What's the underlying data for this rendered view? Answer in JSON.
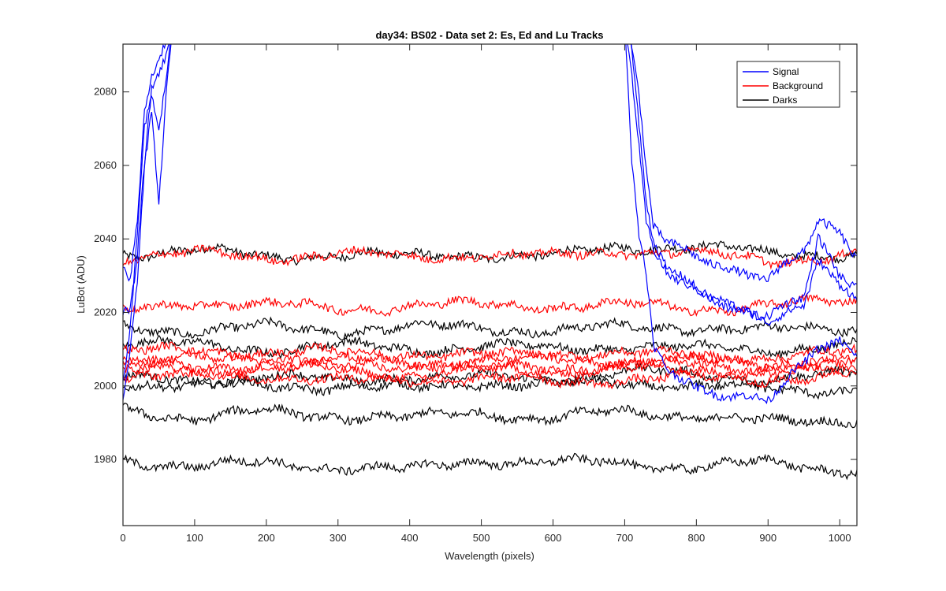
{
  "chart_data": {
    "type": "line",
    "title": "day34: BS02 - Data set 2: Es, Ed and Lu Tracks",
    "xlabel": "Wavelength (pixels)",
    "ylabel": "LuBot (ADU)",
    "xlim": [
      0,
      1024
    ],
    "ylim": [
      1962,
      2093
    ],
    "xticks": [
      0,
      100,
      200,
      300,
      400,
      500,
      600,
      700,
      800,
      900,
      1000
    ],
    "yticks": [
      1980,
      2000,
      2020,
      2040,
      2060,
      2080
    ],
    "grid": false,
    "legend_position": "top-right",
    "legend": [
      {
        "label": "Signal",
        "color": "#0000ff"
      },
      {
        "label": "Background",
        "color": "#ff0000"
      },
      {
        "label": "Darks",
        "color": "#000000"
      }
    ],
    "series": [
      {
        "group": "Darks",
        "color": "#000000",
        "x": [
          0,
          100,
          200,
          300,
          400,
          500,
          600,
          700,
          800,
          900,
          1024
        ],
        "y": [
          2036,
          2037,
          2035,
          2036,
          2035,
          2036,
          2035,
          2038,
          2038,
          2036,
          2036
        ]
      },
      {
        "group": "Darks",
        "color": "#000000",
        "x": [
          0,
          100,
          200,
          300,
          400,
          500,
          600,
          700,
          800,
          900,
          1024
        ],
        "y": [
          2016,
          2015,
          2016,
          2015,
          2016,
          2016,
          2015,
          2016,
          2016,
          2015,
          2016
        ]
      },
      {
        "group": "Darks",
        "color": "#000000",
        "x": [
          0,
          100,
          200,
          300,
          400,
          500,
          600,
          700,
          800,
          900,
          1024
        ],
        "y": [
          2012,
          2011,
          2010,
          2011,
          2010,
          2011,
          2010,
          2011,
          2010,
          2010,
          2011
        ]
      },
      {
        "group": "Darks",
        "color": "#000000",
        "x": [
          0,
          100,
          200,
          300,
          400,
          500,
          600,
          700,
          800,
          900,
          1024
        ],
        "y": [
          2002,
          2001,
          2003,
          2001,
          2003,
          2002,
          2002,
          2004,
          2003,
          2002,
          2003
        ]
      },
      {
        "group": "Darks",
        "color": "#000000",
        "x": [
          0,
          100,
          200,
          300,
          400,
          500,
          600,
          700,
          800,
          900,
          1024
        ],
        "y": [
          2001,
          2000,
          2000,
          2000,
          1999,
          2001,
          2000,
          2001,
          2000,
          1999,
          1999
        ]
      },
      {
        "group": "Darks",
        "color": "#000000",
        "x": [
          0,
          100,
          200,
          300,
          400,
          500,
          600,
          700,
          800,
          900,
          1024
        ],
        "y": [
          1994,
          1991,
          1993,
          1992,
          1991,
          1993,
          1991,
          1993,
          1992,
          1990,
          1991
        ]
      },
      {
        "group": "Darks",
        "color": "#000000",
        "x": [
          0,
          100,
          200,
          300,
          400,
          500,
          600,
          700,
          800,
          900,
          1024
        ],
        "y": [
          1980,
          1978,
          1979,
          1978,
          1977,
          1980,
          1979,
          1979,
          1978,
          1979,
          1977
        ]
      },
      {
        "group": "Background",
        "color": "#ff0000",
        "x": [
          0,
          100,
          200,
          300,
          400,
          500,
          600,
          700,
          800,
          900,
          1024
        ],
        "y": [
          2035,
          2036,
          2035,
          2036,
          2035,
          2036,
          2035,
          2037,
          2036,
          2034,
          2036
        ]
      },
      {
        "group": "Background",
        "color": "#ff0000",
        "x": [
          0,
          100,
          200,
          300,
          400,
          500,
          600,
          700,
          800,
          900,
          1024
        ],
        "y": [
          2020,
          2023,
          2022,
          2021,
          2022,
          2022,
          2022,
          2022,
          2021,
          2022,
          2023
        ]
      },
      {
        "group": "Background",
        "color": "#ff0000",
        "x": [
          0,
          100,
          200,
          300,
          400,
          500,
          600,
          700,
          800,
          900,
          1024
        ],
        "y": [
          2009,
          2010,
          2009,
          2009,
          2009,
          2008,
          2009,
          2009,
          2008,
          2008,
          2009
        ]
      },
      {
        "group": "Background",
        "color": "#ff0000",
        "x": [
          0,
          100,
          200,
          300,
          400,
          500,
          600,
          700,
          800,
          900,
          1024
        ],
        "y": [
          2007,
          2007,
          2008,
          2007,
          2006,
          2007,
          2007,
          2007,
          2007,
          2006,
          2007
        ]
      },
      {
        "group": "Background",
        "color": "#ff0000",
        "x": [
          0,
          100,
          200,
          300,
          400,
          500,
          600,
          700,
          800,
          900,
          1024
        ],
        "y": [
          2006,
          2005,
          2006,
          2005,
          2006,
          2005,
          2005,
          2006,
          2006,
          2005,
          2006
        ]
      },
      {
        "group": "Background",
        "color": "#ff0000",
        "x": [
          0,
          100,
          200,
          300,
          400,
          500,
          600,
          700,
          800,
          900,
          1024
        ],
        "y": [
          2004,
          2004,
          2005,
          2004,
          2003,
          2004,
          2004,
          2005,
          2004,
          2004,
          2004
        ]
      },
      {
        "group": "Background",
        "color": "#ff0000",
        "x": [
          0,
          100,
          200,
          300,
          400,
          500,
          600,
          700,
          800,
          900,
          1024
        ],
        "y": [
          2002,
          2003,
          2003,
          2001,
          2002,
          2002,
          2001,
          2002,
          2002,
          2002,
          2003
        ]
      },
      {
        "group": "Signal",
        "color": "#0000ff",
        "x": [
          0,
          10,
          20,
          30,
          40,
          50,
          60,
          70,
          700,
          710,
          720,
          730,
          740,
          760,
          800,
          850,
          900,
          950,
          970,
          1000,
          1024
        ],
        "y": [
          2033,
          2030,
          2045,
          2075,
          2085,
          2090,
          2095,
          2110,
          2110,
          2092,
          2080,
          2060,
          2045,
          2040,
          2035,
          2030,
          2029,
          2038,
          2046,
          2042,
          2035
        ]
      },
      {
        "group": "Signal",
        "color": "#0000ff",
        "x": [
          0,
          10,
          20,
          30,
          40,
          50,
          60,
          70,
          700,
          710,
          720,
          730,
          740,
          760,
          800,
          850,
          900,
          950,
          970,
          1000,
          1024
        ],
        "y": [
          2000,
          2015,
          2040,
          2070,
          2080,
          2070,
          2085,
          2100,
          2100,
          2090,
          2070,
          2050,
          2040,
          2032,
          2028,
          2022,
          2018,
          2024,
          2040,
          2030,
          2028
        ]
      },
      {
        "group": "Signal",
        "color": "#0000ff",
        "x": [
          0,
          10,
          20,
          30,
          40,
          50,
          60,
          70,
          700,
          710,
          720,
          730,
          740,
          760,
          800,
          850,
          900,
          950,
          970,
          1000,
          1024
        ],
        "y": [
          1998,
          2010,
          2030,
          2060,
          2075,
          2050,
          2080,
          2100,
          2100,
          2085,
          2065,
          2045,
          2038,
          2032,
          2026,
          2020,
          2017,
          2022,
          2036,
          2028,
          2024
        ]
      },
      {
        "group": "Signal",
        "color": "#0000ff",
        "x": [
          0,
          10,
          20,
          30,
          40,
          50,
          60,
          70,
          700,
          710,
          720,
          730,
          740,
          760,
          800,
          850,
          900,
          950,
          970,
          1000,
          1024
        ],
        "y": [
          2020,
          2020,
          2035,
          2060,
          2080,
          2085,
          2090,
          2100,
          2100,
          2060,
          2040,
          2030,
          2010,
          2005,
          2000,
          1998,
          1996,
          2005,
          2010,
          2012,
          2008
        ]
      }
    ]
  }
}
